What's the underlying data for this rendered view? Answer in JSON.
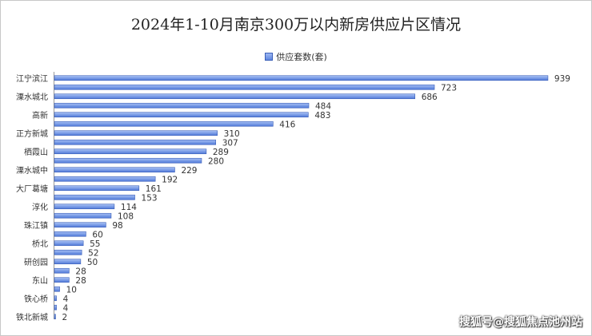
{
  "title": "2024年1-10月南京300万以内新房供应片区情况",
  "watermark": "搜狐号@搜狐焦点池州站",
  "chart_data": {
    "type": "bar",
    "orientation": "horizontal",
    "series": [
      {
        "name": "供应套数(套)",
        "values": [
          939,
          723,
          686,
          484,
          483,
          416,
          310,
          307,
          289,
          280,
          229,
          192,
          161,
          153,
          114,
          108,
          98,
          60,
          55,
          52,
          50,
          28,
          28,
          10,
          4,
          4,
          2
        ]
      }
    ],
    "categories": [
      "江宁滨江",
      "",
      "溧水城北",
      "",
      "高新",
      "",
      "正方新城",
      "",
      "栖霞山",
      "",
      "溧水城中",
      "",
      "大厂葛塘",
      "",
      "淳化",
      "",
      "珠江镇",
      "",
      "桥北",
      "",
      "研创园",
      "",
      "东山",
      "",
      "铁心桥",
      "",
      "铁北新城"
    ],
    "xlim": [
      0,
      1000
    ],
    "grid": false,
    "legend_position": "top",
    "bar_color": "#5b84e0"
  }
}
